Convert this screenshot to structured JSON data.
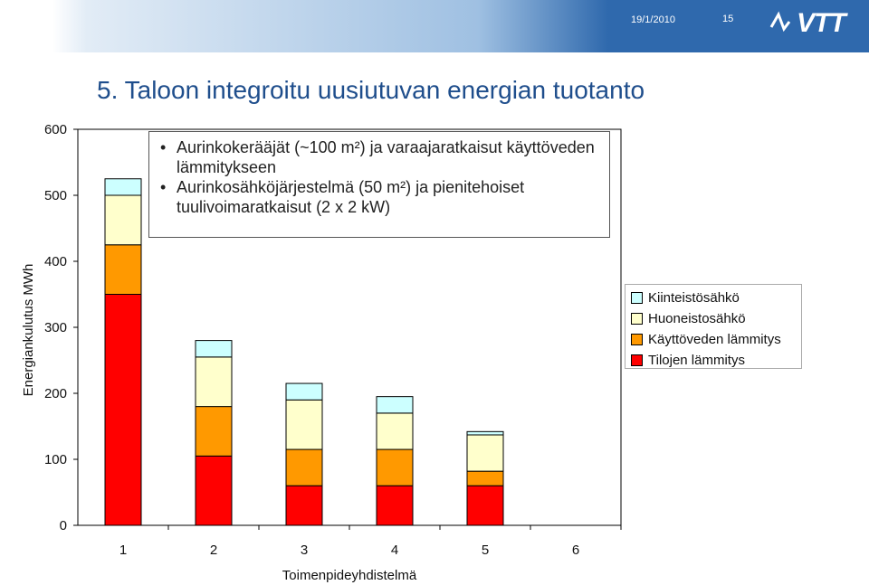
{
  "header": {
    "date": "19/1/2010",
    "page_number": "15",
    "logo": "VTT"
  },
  "slide": {
    "title": "5. Taloon integroitu uusiutuvan energian tuotanto",
    "bullets": [
      "Aurinkokerääjät (~100 m²) ja varaajaratkaisut käyttöveden lämmitykseen",
      "Aurinkosähköjärjestelmä (50 m²) ja pienitehoiset tuulivoimaratkaisut (2 x 2 kW)"
    ]
  },
  "chart_data": {
    "type": "bar",
    "stacked": true,
    "categories": [
      "1",
      "2",
      "3",
      "4",
      "5",
      "6"
    ],
    "series": [
      {
        "name": "Tilojen lämmitys",
        "color": "#ff0000",
        "values": [
          350,
          105,
          60,
          60,
          60,
          0
        ]
      },
      {
        "name": "Käyttöveden lämmitys",
        "color": "#ff9900",
        "values": [
          75,
          75,
          55,
          55,
          22,
          0
        ]
      },
      {
        "name": "Huoneistosähkö",
        "color": "#ffffcc",
        "values": [
          75,
          75,
          75,
          55,
          55,
          0
        ]
      },
      {
        "name": "Kiinteistösähkö",
        "color": "#ccffff",
        "values": [
          25,
          25,
          25,
          25,
          5,
          0
        ]
      }
    ],
    "xlabel": "Toimenpideyhdistelmä",
    "ylabel": "Energiankulutus MWh",
    "ylim": [
      0,
      600
    ],
    "yticks": [
      0,
      100,
      200,
      300,
      400,
      500,
      600
    ],
    "legend_position": "right",
    "grid": false
  }
}
